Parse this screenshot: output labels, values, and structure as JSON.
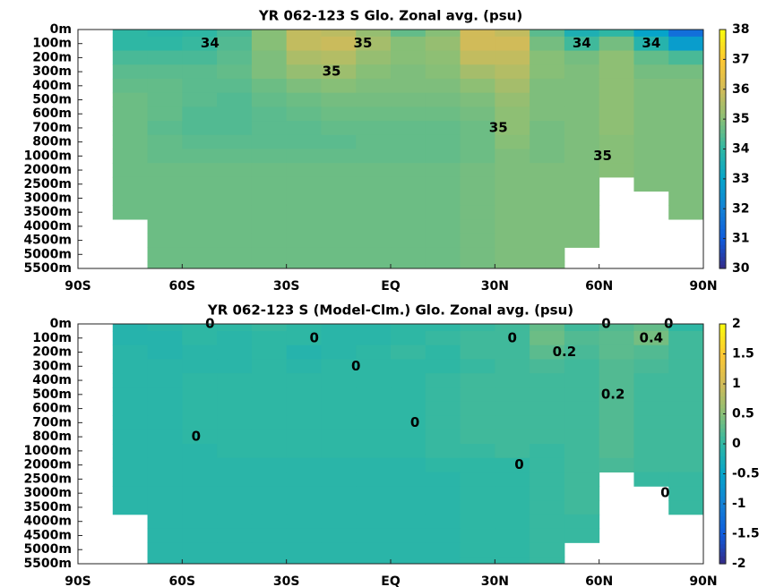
{
  "chart_data": [
    {
      "type": "heatmap",
      "title": "YR 062-123 S Glo. Zonal avg. (psu)",
      "x": [
        -85,
        -75,
        -65,
        -55,
        -45,
        -35,
        -25,
        -15,
        -5,
        5,
        15,
        25,
        35,
        45,
        55,
        65,
        75,
        85
      ],
      "xlim": [
        -90,
        90
      ],
      "xticks": [
        {
          "value": -90,
          "label": "90S"
        },
        {
          "value": -60,
          "label": "60S"
        },
        {
          "value": -30,
          "label": "30S"
        },
        {
          "value": 0,
          "label": "EQ"
        },
        {
          "value": 30,
          "label": "30N"
        },
        {
          "value": 60,
          "label": "60N"
        },
        {
          "value": 90,
          "label": "90N"
        }
      ],
      "y_categories": [
        "0m",
        "100m",
        "200m",
        "300m",
        "400m",
        "500m",
        "600m",
        "700m",
        "800m",
        "1000m",
        "2000m",
        "2500m",
        "3000m",
        "3500m",
        "4000m",
        "4500m",
        "5000m",
        "5500m"
      ],
      "z": [
        [
          null,
          34.0,
          33.9,
          34.0,
          34.3,
          35.0,
          35.8,
          35.7,
          35.2,
          34.6,
          35.0,
          36.0,
          35.8,
          34.5,
          33.6,
          34.0,
          33.0,
          31.5
        ],
        [
          null,
          34.0,
          34.0,
          34.1,
          34.4,
          35.0,
          35.8,
          35.9,
          35.4,
          35.0,
          35.2,
          36.0,
          36.0,
          34.8,
          34.2,
          34.8,
          33.8,
          32.8
        ],
        [
          null,
          34.3,
          34.3,
          34.3,
          34.5,
          34.9,
          35.5,
          35.6,
          35.2,
          35.0,
          35.1,
          35.8,
          35.8,
          35.0,
          34.8,
          35.1,
          34.6,
          34.3
        ],
        [
          null,
          34.5,
          34.5,
          34.5,
          34.6,
          34.9,
          35.2,
          35.3,
          35.0,
          34.9,
          35.0,
          35.4,
          35.6,
          35.0,
          34.9,
          35.1,
          34.8,
          34.8
        ],
        [
          null,
          34.6,
          34.6,
          34.5,
          34.5,
          34.7,
          34.9,
          35.0,
          34.9,
          34.9,
          34.9,
          35.1,
          35.4,
          34.9,
          34.9,
          35.1,
          34.9,
          34.9
        ],
        [
          null,
          34.7,
          34.6,
          34.5,
          34.4,
          34.6,
          34.7,
          34.8,
          34.8,
          34.8,
          34.8,
          34.9,
          35.2,
          34.9,
          34.9,
          35.1,
          34.9,
          34.9
        ],
        [
          null,
          34.7,
          34.6,
          34.4,
          34.4,
          34.5,
          34.6,
          34.7,
          34.7,
          34.7,
          34.7,
          34.8,
          35.1,
          34.9,
          34.9,
          35.1,
          34.9,
          34.9
        ],
        [
          null,
          34.7,
          34.5,
          34.4,
          34.4,
          34.5,
          34.5,
          34.6,
          34.6,
          34.6,
          34.6,
          34.7,
          35.1,
          34.8,
          34.9,
          35.1,
          34.9,
          34.9
        ],
        [
          null,
          34.7,
          34.6,
          34.5,
          34.5,
          34.5,
          34.5,
          34.5,
          34.6,
          34.6,
          34.6,
          34.7,
          35.0,
          34.8,
          34.9,
          35.0,
          34.9,
          34.9
        ],
        [
          null,
          34.7,
          34.6,
          34.6,
          34.6,
          34.6,
          34.6,
          34.6,
          34.6,
          34.6,
          34.6,
          34.7,
          34.9,
          34.8,
          34.9,
          35.0,
          34.9,
          34.9
        ],
        [
          null,
          34.7,
          34.7,
          34.7,
          34.7,
          34.7,
          34.7,
          34.7,
          34.7,
          34.7,
          34.7,
          34.8,
          34.9,
          34.9,
          34.9,
          35.0,
          34.9,
          34.9
        ],
        [
          null,
          34.7,
          34.7,
          34.7,
          34.7,
          34.7,
          34.7,
          34.7,
          34.7,
          34.7,
          34.7,
          34.8,
          34.9,
          34.9,
          34.9,
          null,
          34.9,
          34.9
        ],
        [
          null,
          34.7,
          34.7,
          34.7,
          34.7,
          34.7,
          34.7,
          34.7,
          34.7,
          34.7,
          34.7,
          34.8,
          34.9,
          34.9,
          34.9,
          null,
          null,
          34.9
        ],
        [
          null,
          34.7,
          34.7,
          34.7,
          34.7,
          34.7,
          34.7,
          34.7,
          34.7,
          34.7,
          34.7,
          34.8,
          34.9,
          34.9,
          34.9,
          null,
          null,
          34.9
        ],
        [
          null,
          null,
          34.7,
          34.7,
          34.7,
          34.7,
          34.7,
          34.7,
          34.7,
          34.7,
          34.7,
          34.8,
          34.9,
          34.9,
          34.9,
          null,
          null,
          null
        ],
        [
          null,
          null,
          34.7,
          34.7,
          34.7,
          34.7,
          34.7,
          34.7,
          34.7,
          34.7,
          34.7,
          34.8,
          34.9,
          34.9,
          34.9,
          null,
          null,
          null
        ],
        [
          null,
          null,
          34.7,
          34.7,
          34.7,
          34.7,
          34.7,
          34.7,
          34.7,
          34.7,
          34.7,
          34.8,
          34.9,
          34.9,
          null,
          null,
          null,
          null
        ],
        [
          null,
          null,
          34.7,
          34.7,
          34.7,
          34.7,
          34.7,
          34.7,
          34.7,
          34.7,
          34.7,
          34.8,
          34.9,
          34.9,
          null,
          null,
          null,
          null
        ]
      ],
      "clim": [
        30,
        38
      ],
      "cticks": [
        30,
        31,
        32,
        33,
        34,
        35,
        36,
        37,
        38
      ],
      "contour_labels": [
        {
          "value": 34,
          "x": -52,
          "y": "100m"
        },
        {
          "value": 35,
          "x": -8,
          "y": "100m"
        },
        {
          "value": 35,
          "x": -17,
          "y": "300m"
        },
        {
          "value": 34,
          "x": 55,
          "y": "100m"
        },
        {
          "value": 34,
          "x": 75,
          "y": "100m"
        },
        {
          "value": 35,
          "x": 31,
          "y": "700m"
        },
        {
          "value": 35,
          "x": 61,
          "y": "1000m"
        }
      ]
    },
    {
      "type": "heatmap",
      "title": "YR 062-123 S (Model-Clm.) Glo. Zonal avg. (psu)",
      "x": [
        -85,
        -75,
        -65,
        -55,
        -45,
        -35,
        -25,
        -15,
        -5,
        5,
        15,
        25,
        35,
        45,
        55,
        65,
        75,
        85
      ],
      "xlim": [
        -90,
        90
      ],
      "xticks": [
        {
          "value": -90,
          "label": "90S"
        },
        {
          "value": -60,
          "label": "60S"
        },
        {
          "value": -30,
          "label": "30S"
        },
        {
          "value": 0,
          "label": "EQ"
        },
        {
          "value": 30,
          "label": "30N"
        },
        {
          "value": 60,
          "label": "60N"
        },
        {
          "value": 90,
          "label": "90N"
        }
      ],
      "y_categories": [
        "0m",
        "100m",
        "200m",
        "300m",
        "400m",
        "500m",
        "600m",
        "700m",
        "800m",
        "1000m",
        "2000m",
        "2500m",
        "3000m",
        "3500m",
        "4000m",
        "4500m",
        "5000m",
        "5500m"
      ],
      "z": [
        [
          null,
          -0.1,
          -0.05,
          0,
          0,
          0.05,
          0,
          -0.05,
          -0.05,
          0,
          0,
          0.05,
          0.1,
          0.3,
          0.1,
          0.2,
          0.3,
          0
        ],
        [
          null,
          -0.1,
          -0.1,
          0,
          -0.05,
          0,
          0,
          -0.05,
          -0.05,
          0,
          0.05,
          0.1,
          0.1,
          0.35,
          0.2,
          0.25,
          0.4,
          0.1
        ],
        [
          null,
          -0.05,
          -0.1,
          -0.05,
          -0.05,
          0,
          -0.1,
          -0.05,
          0,
          0.05,
          0,
          0.1,
          0.1,
          0.25,
          0.15,
          0.25,
          0.2,
          0.1
        ],
        [
          null,
          -0.05,
          -0.05,
          -0.05,
          -0.05,
          0,
          -0.05,
          0,
          0,
          0,
          0,
          0.05,
          0.1,
          0.15,
          0.1,
          0.2,
          0.15,
          0.1
        ],
        [
          null,
          -0.05,
          -0.05,
          0,
          0,
          0,
          0,
          0,
          0,
          0,
          0.05,
          0.1,
          0.1,
          0.1,
          0.1,
          0.2,
          0.1,
          0.1
        ],
        [
          null,
          -0.05,
          -0.05,
          0,
          0,
          0,
          0,
          0,
          0,
          0,
          0.05,
          0.1,
          0.1,
          0.1,
          0.1,
          0.2,
          0.1,
          0.1
        ],
        [
          null,
          -0.05,
          -0.05,
          0,
          0,
          0,
          0,
          0,
          0,
          0,
          0.05,
          0.1,
          0.1,
          0.1,
          0.1,
          0.2,
          0.1,
          0.1
        ],
        [
          null,
          -0.05,
          -0.05,
          0,
          0,
          0,
          0,
          0,
          0,
          0,
          0.05,
          0.1,
          0.1,
          0.1,
          0.1,
          0.2,
          0.1,
          0.1
        ],
        [
          null,
          -0.05,
          -0.05,
          0,
          0,
          0,
          0,
          0,
          0,
          0,
          0.05,
          0.1,
          0.1,
          0.1,
          0.1,
          0.2,
          0.1,
          0.1
        ],
        [
          null,
          -0.05,
          -0.05,
          -0.05,
          0,
          0,
          0,
          0,
          0,
          0,
          0.05,
          0.05,
          0.1,
          0.05,
          0.1,
          0.2,
          0.1,
          0.1
        ],
        [
          null,
          -0.05,
          -0.05,
          -0.05,
          -0.05,
          -0.05,
          -0.05,
          -0.05,
          -0.05,
          -0.05,
          0,
          0,
          0,
          0.05,
          0.1,
          0.15,
          0.1,
          0.1
        ],
        [
          null,
          -0.05,
          -0.05,
          -0.05,
          -0.05,
          -0.05,
          -0.05,
          -0.05,
          -0.05,
          -0.05,
          -0.05,
          0,
          0,
          0.05,
          0.1,
          null,
          0.05,
          0.05
        ],
        [
          null,
          -0.05,
          -0.05,
          -0.05,
          -0.05,
          -0.05,
          -0.05,
          -0.05,
          -0.05,
          -0.05,
          -0.05,
          0,
          0,
          0.05,
          0.1,
          null,
          null,
          0.05
        ],
        [
          null,
          -0.05,
          -0.05,
          -0.05,
          -0.05,
          -0.05,
          -0.05,
          -0.05,
          -0.05,
          -0.05,
          -0.05,
          0,
          0,
          0.05,
          0.1,
          null,
          null,
          0.05
        ],
        [
          null,
          null,
          -0.05,
          -0.05,
          -0.05,
          -0.05,
          -0.05,
          -0.05,
          -0.05,
          -0.05,
          -0.05,
          0,
          0,
          0.05,
          0.05,
          null,
          null,
          null
        ],
        [
          null,
          null,
          -0.05,
          -0.05,
          -0.05,
          -0.05,
          -0.05,
          -0.05,
          -0.05,
          -0.05,
          -0.05,
          0,
          0,
          0.05,
          0.05,
          null,
          null,
          null
        ],
        [
          null,
          null,
          -0.05,
          -0.05,
          -0.05,
          -0.05,
          -0.05,
          -0.05,
          -0.05,
          -0.05,
          -0.05,
          0,
          0,
          0.05,
          null,
          null,
          null,
          null
        ],
        [
          null,
          null,
          -0.05,
          -0.05,
          -0.05,
          -0.05,
          -0.05,
          -0.05,
          -0.05,
          -0.05,
          -0.05,
          0,
          0,
          0.05,
          null,
          null,
          null,
          null
        ]
      ],
      "clim": [
        -2,
        2
      ],
      "cticks": [
        -2,
        -1.5,
        -1,
        -0.5,
        0,
        0.5,
        1,
        1.5,
        2
      ],
      "contour_labels": [
        {
          "value": 0,
          "x": -52,
          "y": "0m"
        },
        {
          "value": 0,
          "x": -22,
          "y": "100m"
        },
        {
          "value": 0,
          "x": -10,
          "y": "300m"
        },
        {
          "value": 0,
          "x": -56,
          "y": "800m"
        },
        {
          "value": 0,
          "x": 7,
          "y": "700m"
        },
        {
          "value": 0,
          "x": 35,
          "y": "100m"
        },
        {
          "value": 0.2,
          "x": 50,
          "y": "200m"
        },
        {
          "value": 0,
          "x": 62,
          "y": "0m"
        },
        {
          "value": 0.2,
          "x": 64,
          "y": "500m"
        },
        {
          "value": 0,
          "x": 37,
          "y": "2000m"
        },
        {
          "value": 0,
          "x": 79,
          "y": "3000m"
        },
        {
          "value": 0.4,
          "x": 75,
          "y": "100m"
        },
        {
          "value": 0,
          "x": 80,
          "y": "0m"
        }
      ]
    }
  ]
}
